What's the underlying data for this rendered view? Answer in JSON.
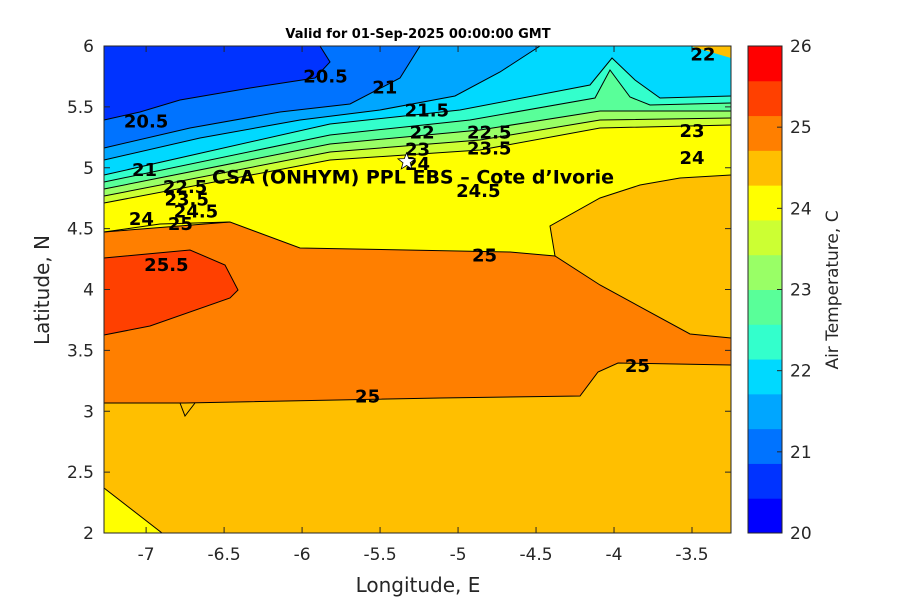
{
  "chart_data": {
    "type": "heatmap",
    "title": "Valid for 01-Sep-2025 00:00:00 GMT",
    "xlabel": "Longitude, E",
    "ylabel": "Latitude, N",
    "xlim": [
      -7.27,
      -3.25
    ],
    "ylim": [
      2,
      6
    ],
    "x_ticks": [
      "-7",
      "-6.5",
      "-6",
      "-5.5",
      "-5",
      "-4.5",
      "-4",
      "-3.5"
    ],
    "y_ticks": [
      "2",
      "2.5",
      "3",
      "3.5",
      "4",
      "4.5",
      "5",
      "5.5",
      "6"
    ],
    "colorbar": {
      "label": "Air Temperature, C",
      "range": [
        20,
        26
      ],
      "step": 0.5,
      "ticks": [
        "20",
        "21",
        "22",
        "23",
        "24",
        "25",
        "26"
      ],
      "colors": [
        "#0000ff",
        "#0033ff",
        "#0073ff",
        "#00a6ff",
        "#00d9ff",
        "#33ffcc",
        "#59ff99",
        "#99ff66",
        "#ccff33",
        "#ffff00",
        "#ffbf00",
        "#ff7f00",
        "#ff4000",
        "#ff0000"
      ]
    },
    "site": {
      "name": "CSA (ONHYM) PPL EBS  – Cote d’Ivorie",
      "lon": -5.33,
      "lat": 5.05
    },
    "contour_labels": [
      {
        "text": "20.5",
        "lon": -5.85,
        "lat": 5.75
      },
      {
        "text": "20.5",
        "lon": -7.0,
        "lat": 5.38
      },
      {
        "text": "21",
        "lon": -5.47,
        "lat": 5.66
      },
      {
        "text": "21",
        "lon": -7.01,
        "lat": 4.98
      },
      {
        "text": "21.5",
        "lon": -5.2,
        "lat": 5.47
      },
      {
        "text": "22",
        "lon": -3.43,
        "lat": 5.93
      },
      {
        "text": "22",
        "lon": -5.23,
        "lat": 5.29
      },
      {
        "text": "22.5",
        "lon": -4.8,
        "lat": 5.29
      },
      {
        "text": "23",
        "lon": -3.5,
        "lat": 5.3
      },
      {
        "text": "23",
        "lon": -5.26,
        "lat": 5.15
      },
      {
        "text": "23.5",
        "lon": -4.8,
        "lat": 5.16
      },
      {
        "text": "24",
        "lon": -3.5,
        "lat": 5.08
      },
      {
        "text": "24",
        "lon": -5.26,
        "lat": 5.03
      },
      {
        "text": "24",
        "lon": -7.03,
        "lat": 4.58
      },
      {
        "text": "22.5",
        "lon": -6.75,
        "lat": 4.84
      },
      {
        "text": "23.5",
        "lon": -6.74,
        "lat": 4.74
      },
      {
        "text": "24.5",
        "lon": -6.68,
        "lat": 4.64
      },
      {
        "text": "25",
        "lon": -6.78,
        "lat": 4.54
      },
      {
        "text": "24.5",
        "lon": -4.87,
        "lat": 4.81
      },
      {
        "text": "25",
        "lon": -4.83,
        "lat": 4.28
      },
      {
        "text": "25.5",
        "lon": -6.87,
        "lat": 4.2
      },
      {
        "text": "25",
        "lon": -5.58,
        "lat": 3.12
      },
      {
        "text": "25",
        "lon": -3.85,
        "lat": 3.37
      }
    ]
  }
}
